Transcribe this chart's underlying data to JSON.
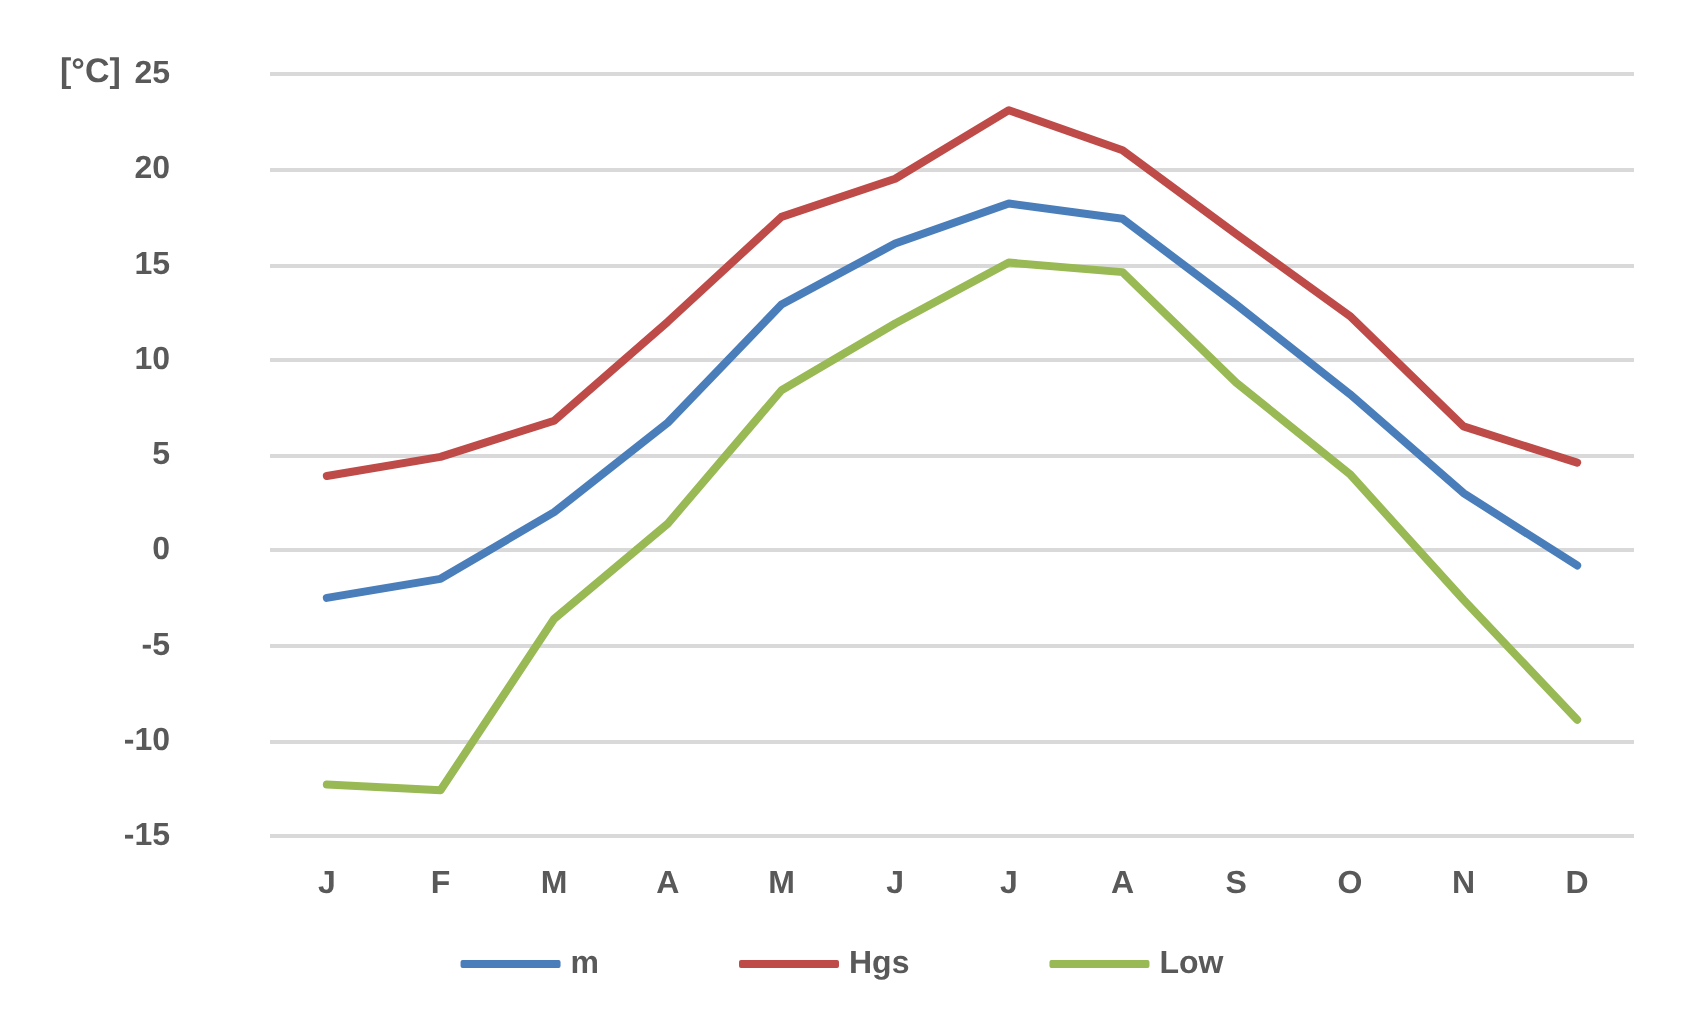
{
  "chart_data": {
    "type": "line",
    "ylabel": "[°C]",
    "categories": [
      "J",
      "F",
      "M",
      "A",
      "M",
      "J",
      "J",
      "A",
      "S",
      "O",
      "N",
      "D"
    ],
    "series": [
      {
        "name": "m",
        "color": "#4a7ebb",
        "values": [
          -2.5,
          -1.5,
          2.0,
          6.7,
          12.9,
          16.1,
          18.2,
          17.4,
          12.9,
          8.2,
          3.0,
          -0.8
        ]
      },
      {
        "name": "Hgs",
        "color": "#be4b48",
        "values": [
          3.9,
          4.9,
          6.8,
          12.0,
          17.5,
          19.5,
          23.1,
          21.0,
          16.6,
          12.3,
          6.5,
          4.6
        ]
      },
      {
        "name": "Low",
        "color": "#98b954",
        "values": [
          -12.3,
          -12.6,
          -3.6,
          1.4,
          8.4,
          11.9,
          15.1,
          14.6,
          8.8,
          4.0,
          -2.6,
          -8.9
        ]
      }
    ],
    "ylim": [
      -15,
      25
    ],
    "yticks": [
      -15,
      -10,
      -5,
      0,
      5,
      10,
      15,
      20,
      25
    ],
    "grid": "y",
    "legend": "bottom",
    "marker": "none",
    "line_style": "solid"
  }
}
